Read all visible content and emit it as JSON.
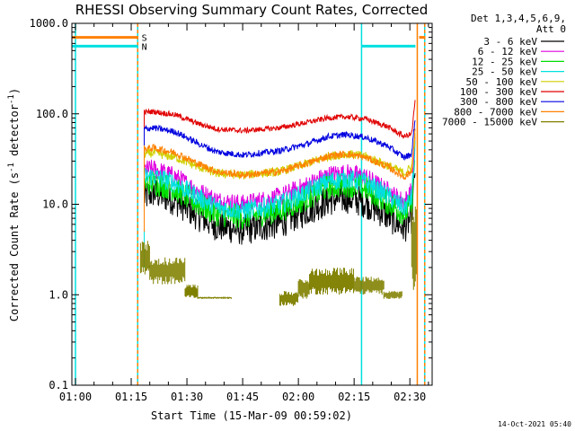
{
  "colors": {
    "background": "#ffffff",
    "axis": "#000000",
    "attenuator_marker": "#ff8000",
    "saa_marker": "#00e0e0",
    "night_marker": "#00e0e0",
    "attenuator_line": "#ff7f00"
  },
  "chart_data": {
    "type": "line",
    "title": "RHESSI Observing Summary Count Rates, Corrected",
    "xlabel": "Start Time (15-Mar-09 00:59:02)",
    "ylabel_parts": [
      "Corrected Count Rate (s",
      "-1",
      " detector",
      "-1",
      ")"
    ],
    "y_scale": "log",
    "ylim": [
      0.1,
      1000
    ],
    "xlim": [
      "00:59:02",
      "02:36:00"
    ],
    "grid": false,
    "legend_position": "top-right outside",
    "legend_header": [
      "Det 1,3,4,5,6,9,",
      "Att 0"
    ],
    "timestamp": "14-Oct-2021 05:40",
    "y_ticks": [
      {
        "value": 0.1,
        "label": "0.1"
      },
      {
        "value": 1,
        "label": "1.0"
      },
      {
        "value": 10,
        "label": "10.0"
      },
      {
        "value": 100,
        "label": "100.0"
      },
      {
        "value": 1000,
        "label": "1000.0"
      }
    ],
    "x_ticks": [
      {
        "time": "01:00",
        "label": "01:00"
      },
      {
        "time": "01:15",
        "label": "01:15"
      },
      {
        "time": "01:30",
        "label": "01:30"
      },
      {
        "time": "01:45",
        "label": "01:45"
      },
      {
        "time": "02:00",
        "label": "02:00"
      },
      {
        "time": "02:15",
        "label": "02:15"
      },
      {
        "time": "02:30",
        "label": "02:30"
      }
    ],
    "flag_bars": [
      {
        "label": "S",
        "color": "#ff8000",
        "value": 700,
        "segments": [
          [
            "00:59:02",
            "01:16:50"
          ],
          [
            "02:32:30",
            "02:34:00"
          ]
        ]
      },
      {
        "label": "N",
        "color": "#00e0e0",
        "value": 560,
        "segments": [
          [
            "00:59:02",
            "01:16:50"
          ],
          [
            "02:17:00",
            "02:31:30"
          ]
        ]
      }
    ],
    "vertical_markers": [
      {
        "time": "01:00:00",
        "color": "#00e0e0",
        "style": "solid"
      },
      {
        "time": "01:16:45",
        "color": "#00e0e0",
        "style": "solid"
      },
      {
        "time": "01:16:45",
        "color": "#ff7f00",
        "style": "dashed"
      },
      {
        "time": "02:17:00",
        "color": "#00e0e0",
        "style": "solid"
      },
      {
        "time": "02:32:00",
        "color": "#ff7f00",
        "style": "solid"
      },
      {
        "time": "02:34:00",
        "color": "#00e0e0",
        "style": "solid"
      },
      {
        "time": "02:34:00",
        "color": "#ff7f00",
        "style": "dashed"
      }
    ],
    "series": [
      {
        "name": "3 - 6 keV",
        "color": "#000000",
        "noise": 0.35,
        "points": [
          [
            "01:18:30",
            12
          ],
          [
            "01:21:00",
            13.5
          ],
          [
            "01:27:00",
            11
          ],
          [
            "01:33:00",
            7.5
          ],
          [
            "01:38:00",
            5.8
          ],
          [
            "01:45:00",
            5.2
          ],
          [
            "01:55:00",
            6.2
          ],
          [
            "02:02:00",
            8.5
          ],
          [
            "02:08:00",
            11
          ],
          [
            "02:13:00",
            11.8
          ],
          [
            "02:18:00",
            10.5
          ],
          [
            "02:24:00",
            7.5
          ],
          [
            "02:28:30",
            5.5
          ],
          [
            "02:30:30",
            7
          ],
          [
            "02:31:30",
            30
          ]
        ]
      },
      {
        "name": "6 - 12 keV",
        "color": "#e000e0",
        "noise": 0.22,
        "points": [
          [
            "01:18:30",
            24
          ],
          [
            "01:21:00",
            24.5
          ],
          [
            "01:27:00",
            20
          ],
          [
            "01:33:00",
            14
          ],
          [
            "01:38:00",
            11
          ],
          [
            "01:45:00",
            10
          ],
          [
            "01:55:00",
            12
          ],
          [
            "02:02:00",
            16
          ],
          [
            "02:08:00",
            21
          ],
          [
            "02:13:00",
            22
          ],
          [
            "02:18:00",
            20
          ],
          [
            "02:24:00",
            14
          ],
          [
            "02:28:30",
            10.5
          ],
          [
            "02:30:30",
            14
          ],
          [
            "02:31:30",
            50
          ]
        ]
      },
      {
        "name": "12 - 25 keV",
        "color": "#00e000",
        "noise": 0.28,
        "points": [
          [
            "01:18:30",
            17
          ],
          [
            "01:21:00",
            17.5
          ],
          [
            "01:27:00",
            14.5
          ],
          [
            "01:33:00",
            10
          ],
          [
            "01:38:00",
            7.8
          ],
          [
            "01:45:00",
            7.2
          ],
          [
            "01:55:00",
            8.5
          ],
          [
            "02:02:00",
            11.5
          ],
          [
            "02:08:00",
            15.5
          ],
          [
            "02:13:00",
            16.5
          ],
          [
            "02:18:00",
            15
          ],
          [
            "02:24:00",
            10.5
          ],
          [
            "02:28:30",
            7.8
          ],
          [
            "02:30:30",
            10
          ],
          [
            "02:31:30",
            40
          ]
        ]
      },
      {
        "name": "25 - 50 keV",
        "color": "#00e0e0",
        "noise": 0.22,
        "points": [
          [
            "01:18:30",
            20
          ],
          [
            "01:21:00",
            20.5
          ],
          [
            "01:27:00",
            17
          ],
          [
            "01:33:00",
            12
          ],
          [
            "01:38:00",
            9.3
          ],
          [
            "01:45:00",
            8.5
          ],
          [
            "01:55:00",
            10
          ],
          [
            "02:02:00",
            13.5
          ],
          [
            "02:08:00",
            18
          ],
          [
            "02:13:00",
            19
          ],
          [
            "02:18:00",
            17.5
          ],
          [
            "02:24:00",
            12.5
          ],
          [
            "02:28:30",
            9
          ],
          [
            "02:30:30",
            12
          ],
          [
            "02:31:30",
            45
          ]
        ]
      },
      {
        "name": "50 - 100 keV",
        "color": "#d0d000",
        "noise": 0.1,
        "points": [
          [
            "01:18:30",
            36
          ],
          [
            "01:21:00",
            37
          ],
          [
            "01:27:00",
            33
          ],
          [
            "01:33:00",
            26
          ],
          [
            "01:38:00",
            22
          ],
          [
            "01:45:00",
            21
          ],
          [
            "01:55:00",
            23
          ],
          [
            "02:02:00",
            28
          ],
          [
            "02:08:00",
            34
          ],
          [
            "02:13:00",
            36
          ],
          [
            "02:18:00",
            34
          ],
          [
            "02:24:00",
            27
          ],
          [
            "02:28:30",
            22
          ],
          [
            "02:30:30",
            26
          ],
          [
            "02:31:30",
            60
          ]
        ]
      },
      {
        "name": "100 - 300 keV",
        "color": "#e00000",
        "noise": 0.06,
        "points": [
          [
            "01:18:30",
            104
          ],
          [
            "01:21:00",
            106
          ],
          [
            "01:27:00",
            97
          ],
          [
            "01:33:00",
            78
          ],
          [
            "01:38:00",
            68
          ],
          [
            "01:45:00",
            65
          ],
          [
            "01:55:00",
            70
          ],
          [
            "02:02:00",
            80
          ],
          [
            "02:08:00",
            90
          ],
          [
            "02:13:00",
            93
          ],
          [
            "02:18:00",
            88
          ],
          [
            "02:24:00",
            72
          ],
          [
            "02:28:30",
            56
          ],
          [
            "02:30:30",
            60
          ],
          [
            "02:31:30",
            150
          ]
        ]
      },
      {
        "name": "300 - 800 keV",
        "color": "#0000e0",
        "noise": 0.07,
        "points": [
          [
            "01:18:30",
            68
          ],
          [
            "01:21:00",
            70
          ],
          [
            "01:27:00",
            63
          ],
          [
            "01:33:00",
            47
          ],
          [
            "01:38:00",
            38
          ],
          [
            "01:45:00",
            35
          ],
          [
            "01:55:00",
            39
          ],
          [
            "02:02:00",
            46
          ],
          [
            "02:08:00",
            56
          ],
          [
            "02:13:00",
            59
          ],
          [
            "02:18:00",
            55
          ],
          [
            "02:24:00",
            44
          ],
          [
            "02:28:30",
            33
          ],
          [
            "02:30:30",
            36
          ],
          [
            "02:31:30",
            100
          ]
        ]
      },
      {
        "name": "800 - 7000 keV",
        "color": "#ff8000",
        "noise": 0.08,
        "points": [
          [
            "01:18:30",
            41
          ],
          [
            "01:21:00",
            42
          ],
          [
            "01:27:00",
            37
          ],
          [
            "01:33:00",
            28
          ],
          [
            "01:38:00",
            23
          ],
          [
            "01:45:00",
            21
          ],
          [
            "01:55:00",
            23
          ],
          [
            "02:02:00",
            28
          ],
          [
            "02:08:00",
            34
          ],
          [
            "02:13:00",
            36
          ],
          [
            "02:18:00",
            33
          ],
          [
            "02:24:00",
            26
          ],
          [
            "02:28:30",
            20
          ],
          [
            "02:30:30",
            23
          ],
          [
            "02:31:30",
            70
          ]
        ]
      },
      {
        "name": "7000 - 15000 keV",
        "color": "#808000",
        "noise": 0,
        "points": [],
        "blocks": [
          [
            "01:17:30",
            "01:20:00",
            1.6,
            4.0
          ],
          [
            "01:20:00",
            "01:29:30",
            1.3,
            2.6
          ],
          [
            "01:29:30",
            "01:33:00",
            0.9,
            1.3
          ],
          [
            "01:33:00",
            "01:42:00",
            0.9,
            0.95
          ],
          [
            "01:55:00",
            "02:00:00",
            0.75,
            1.1
          ],
          [
            "02:00:00",
            "02:03:00",
            0.9,
            1.5
          ],
          [
            "02:03:00",
            "02:15:00",
            1.0,
            2.0
          ],
          [
            "02:15:00",
            "02:23:00",
            1.0,
            1.6
          ],
          [
            "02:23:00",
            "02:28:00",
            0.9,
            1.1
          ],
          [
            "02:30:30",
            "02:31:45",
            1.0,
            12.0
          ]
        ]
      }
    ]
  }
}
